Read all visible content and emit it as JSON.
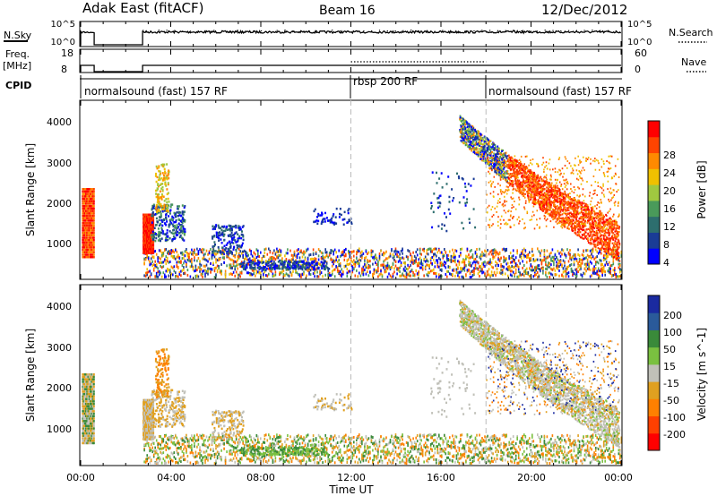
{
  "header": {
    "title": "Adak East (fitACF)",
    "beam": "Beam 16",
    "date": "12/Dec/2012"
  },
  "nsky_panel": {
    "label": "N.Sky",
    "right_label": "N.Search",
    "left_ticks": [
      "10^5",
      "10^0"
    ],
    "right_ticks": [
      "10^5",
      "10^0"
    ]
  },
  "freq_panel": {
    "label_line1": "Freq.",
    "label_line2": "[MHz]",
    "right_label": "Nave",
    "left_ticks": [
      "18",
      "8"
    ],
    "right_ticks": [
      "60",
      "0"
    ]
  },
  "cpid_panel": {
    "label": "CPID",
    "segments": [
      "normalsound (fast) 157 RF",
      "rbsp 200 RF",
      "normalsound (fast) 157 RF"
    ]
  },
  "power_panel": {
    "ylabel": "Slant Range [km]",
    "yticks": [
      "4000",
      "3000",
      "2000",
      "1000"
    ],
    "colorbar_label": "Power [dB]",
    "colorbar_ticks": [
      "28",
      "24",
      "20",
      "16",
      "12",
      "8",
      "4"
    ],
    "colors": [
      "#0000ff",
      "#1a3c96",
      "#2d6e6e",
      "#4a9a5a",
      "#a0c840",
      "#f0c000",
      "#ff8a00",
      "#ff4400",
      "#ff0000"
    ]
  },
  "velocity_panel": {
    "ylabel": "Slant Range [km]",
    "yticks": [
      "4000",
      "3000",
      "2000",
      "1000"
    ],
    "colorbar_label": "Velocity [m s^-1]",
    "colorbar_ticks": [
      "200",
      "100",
      "50",
      "15",
      "-15",
      "-50",
      "-100",
      "-200"
    ],
    "colors": [
      "#1a2aa0",
      "#2a5a9a",
      "#3a8a3a",
      "#7ac040",
      "#c0c0b8",
      "#e0a020",
      "#ff8000",
      "#ff4000",
      "#ff0000"
    ]
  },
  "xaxis": {
    "ticks": [
      "00:00",
      "04:00",
      "08:00",
      "12:00",
      "16:00",
      "20:00",
      "00:00"
    ],
    "label": "Time UT"
  },
  "chart_data": {
    "type": "heatmap",
    "xlabel": "Time UT",
    "ylabel": "Slant Range [km]",
    "xlim_hours": [
      0,
      24
    ],
    "ylim_km": [
      180,
      4600
    ],
    "cpid_segments_hours": [
      [
        0,
        12,
        "normalsound (fast) 157 RF"
      ],
      [
        12,
        18,
        "rbsp 200 RF"
      ],
      [
        18,
        24,
        "normalsound (fast) 157 RF"
      ]
    ],
    "data_gap_hours": [
      0.6,
      2.7
    ],
    "power_colorbar": {
      "label": "Power [dB]",
      "range": [
        0,
        30
      ]
    },
    "velocity_colorbar": {
      "label": "Velocity [m s^-1]",
      "range": [
        -250,
        250
      ]
    }
  }
}
